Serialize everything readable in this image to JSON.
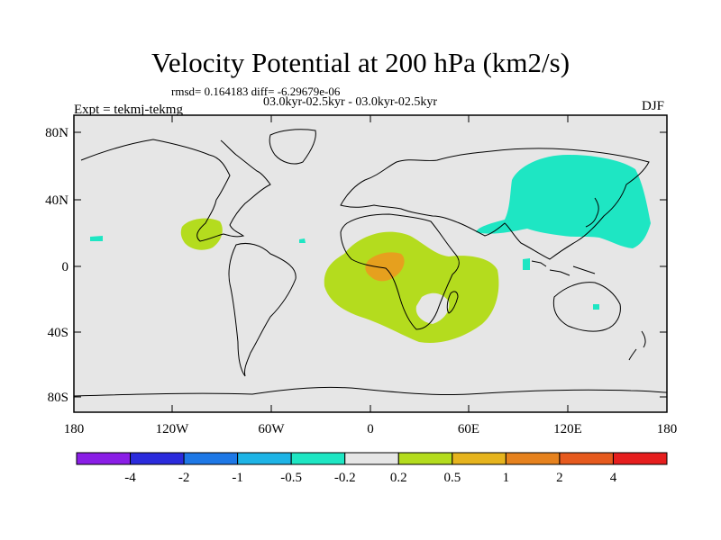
{
  "title": "Velocity Potential at 200 hPa (km2/s)",
  "rmsd_text": "rmsd= 0.164183 diff= -6.29679e-06",
  "periods_text": "03.0kyr-02.5kyr - 03.0kyr-02.5kyr",
  "expt_text": "Expt = tekmj-tekmg",
  "season": "DJF",
  "lat_labels": [
    "80N",
    "40N",
    "0",
    "40S",
    "80S"
  ],
  "lon_labels": [
    "180",
    "120W",
    "60W",
    "0",
    "60E",
    "120E",
    "180"
  ],
  "colorbar": {
    "labels": [
      "-4",
      "-2",
      "-1",
      "-0.5",
      "-0.2",
      "0.2",
      "0.5",
      "1",
      "2",
      "4"
    ],
    "colors": [
      "#8a1ee6",
      "#2b2bdc",
      "#1e78e6",
      "#1eb4e6",
      "#1ee6c3",
      "#e6e6e6",
      "#b4dc1e",
      "#e6b41e",
      "#e6821e",
      "#e65a1e",
      "#e61e1e"
    ]
  },
  "colors": {
    "background": "#e6e6e6",
    "positive_small": "#b4dc1e",
    "positive_mid": "#e6a01e",
    "negative_small": "#1ee6c3"
  }
}
